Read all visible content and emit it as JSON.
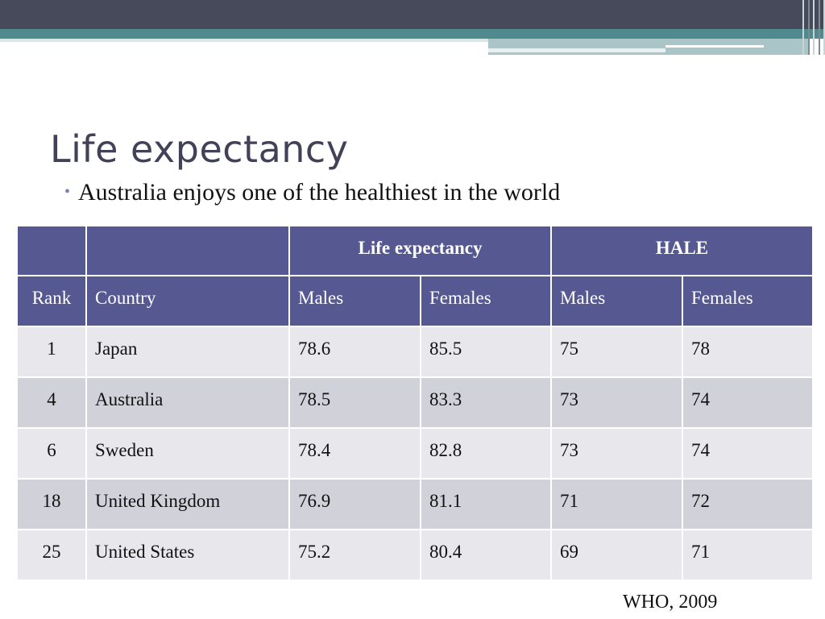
{
  "slide": {
    "title": "Life expectancy",
    "bullet": "Australia enjoys one of the healthiest in the world",
    "source": "WHO, 2009"
  },
  "table": {
    "group_headers": [
      "",
      "",
      "Life expectancy",
      "HALE"
    ],
    "columns": [
      "Rank",
      "Country",
      "Males",
      "Females",
      "Males",
      "Females"
    ],
    "rows": [
      {
        "rank": "1",
        "country": "Japan",
        "le_males": "78.6",
        "le_females": "85.5",
        "hale_males": "75",
        "hale_females": "78"
      },
      {
        "rank": "4",
        "country": "Australia",
        "le_males": "78.5",
        "le_females": "83.3",
        "hale_males": "73",
        "hale_females": "74"
      },
      {
        "rank": "6",
        "country": "Sweden",
        "le_males": "78.4",
        "le_females": "82.8",
        "hale_males": "73",
        "hale_females": "74"
      },
      {
        "rank": "18",
        "country": "United Kingdom",
        "le_males": "76.9",
        "le_females": "81.1",
        "hale_males": "71",
        "hale_females": "72"
      },
      {
        "rank": "25",
        "country": "United States",
        "le_males": "75.2",
        "le_females": "80.4",
        "hale_males": "69",
        "hale_females": "71"
      }
    ]
  },
  "colors": {
    "header_bg": "#565891",
    "row_light": "#e8e8ec",
    "row_dark": "#d1d1d9",
    "title_color": "#414257",
    "top_band": "#464a5a",
    "teal_band": "#4f8a8e"
  }
}
